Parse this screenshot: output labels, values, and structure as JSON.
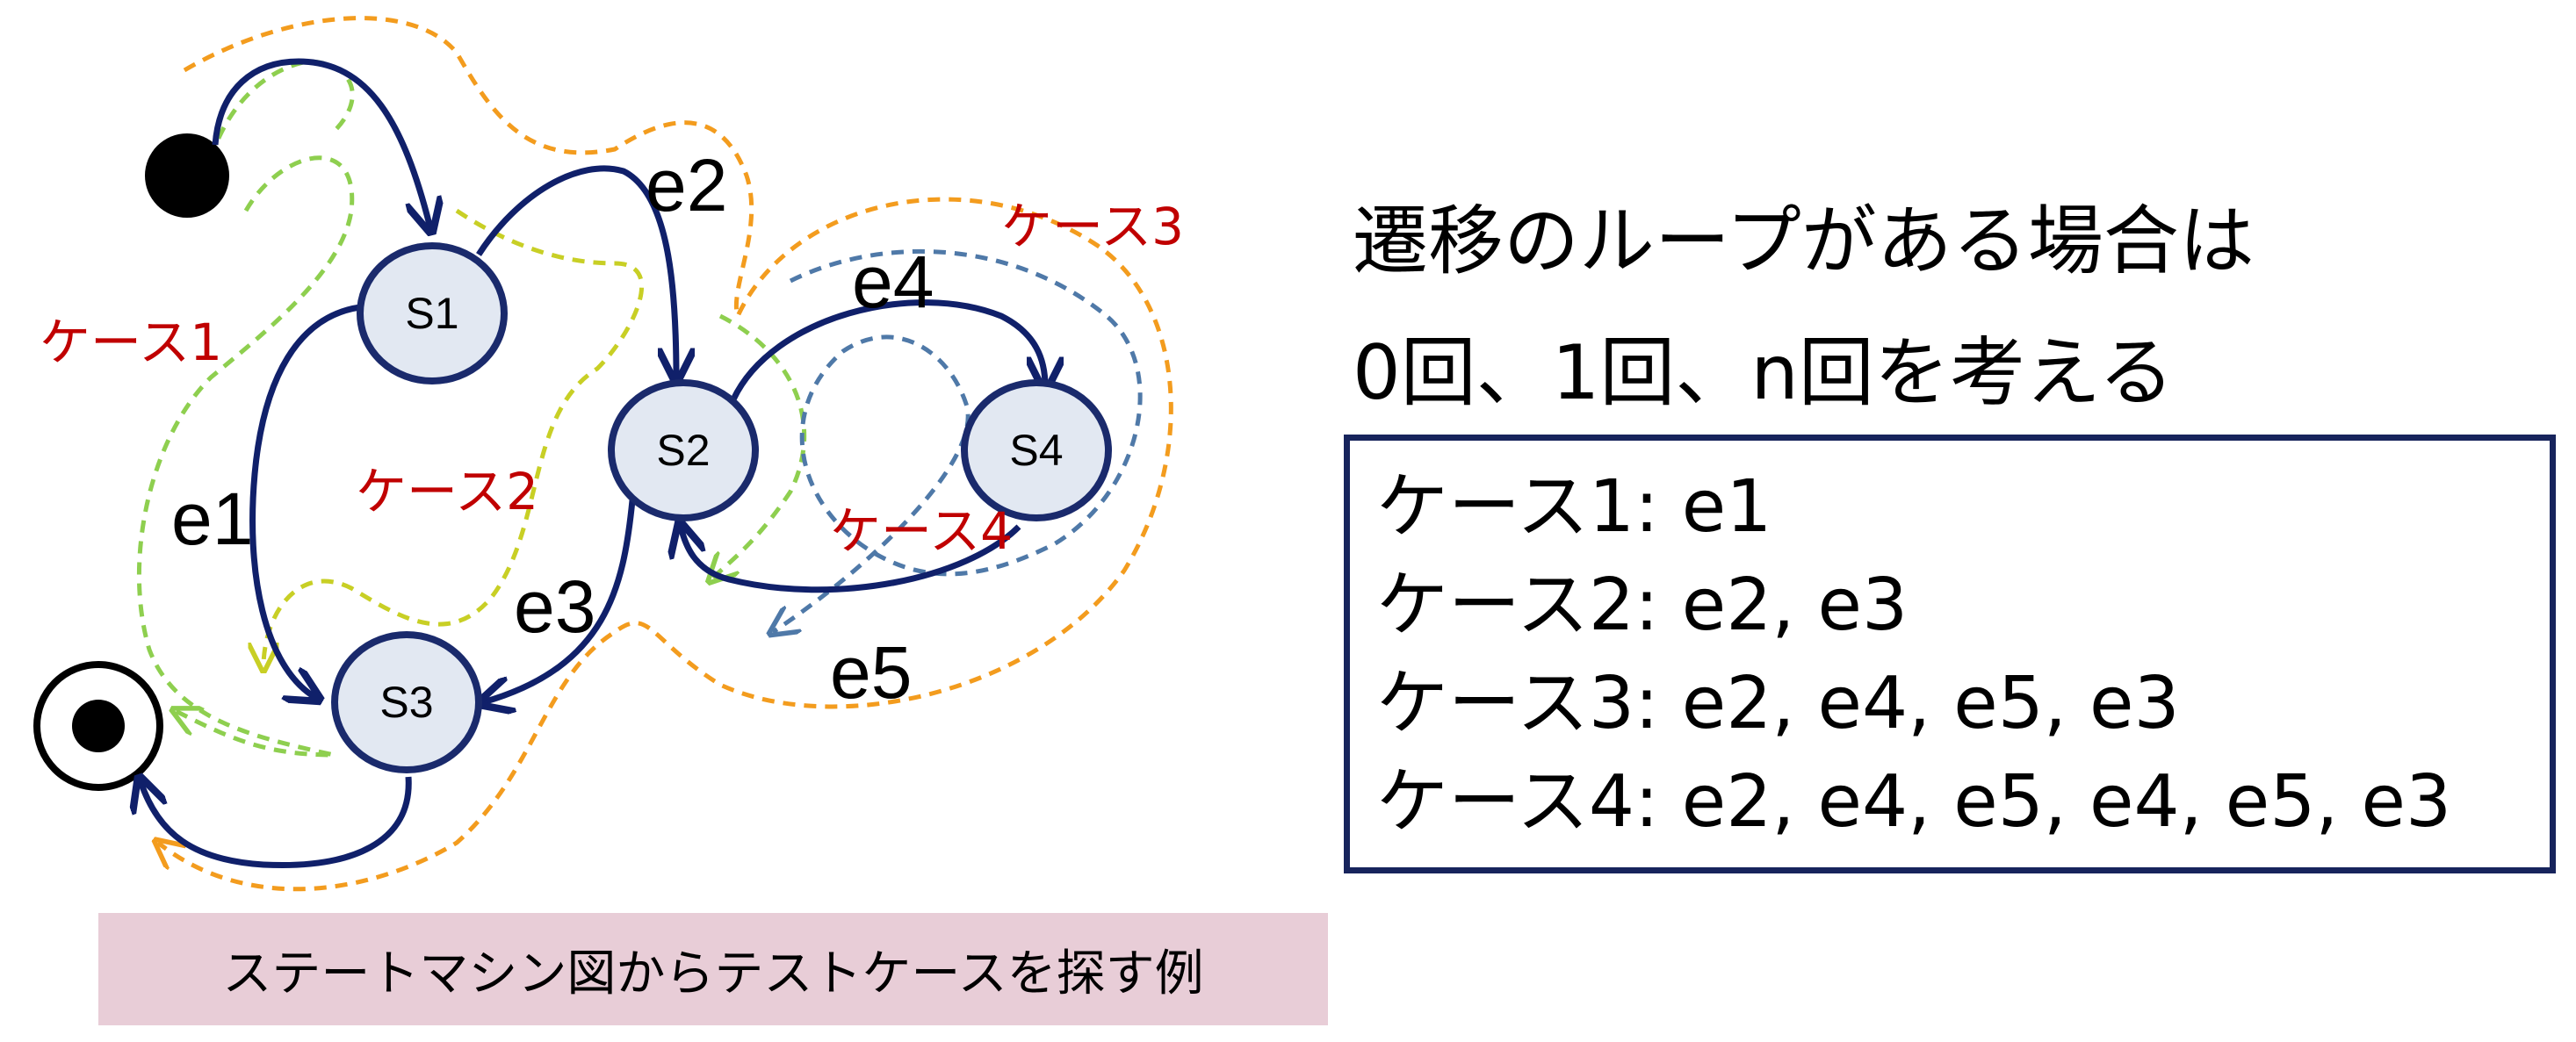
{
  "diagram": {
    "states": [
      "S1",
      "S2",
      "S3",
      "S4"
    ],
    "edges": [
      "e1",
      "e2",
      "e3",
      "e4",
      "e5"
    ],
    "case_labels": [
      "ケース1",
      "ケース2",
      "ケース3",
      "ケース4"
    ],
    "colors": {
      "state_fill": "#e2e8f2",
      "state_stroke": "#1a2a6c",
      "transition": "#10206a",
      "case1": "#8ecf4f",
      "case2": "#c8cf25",
      "case3": "#f39c1e",
      "case4": "#4f79a8",
      "case_label": "#c00000"
    }
  },
  "caption": "ステートマシン図からテストケースを探す例",
  "note": {
    "line1": "遷移のループがある場合は",
    "line2": "0回、1回、n回を考える"
  },
  "cases": [
    "ケース1: e1",
    "ケース2: e2, e3",
    "ケース3: e2, e4, e5, e3",
    "ケース4: e2, e4, e5, e4, e5, e3"
  ]
}
